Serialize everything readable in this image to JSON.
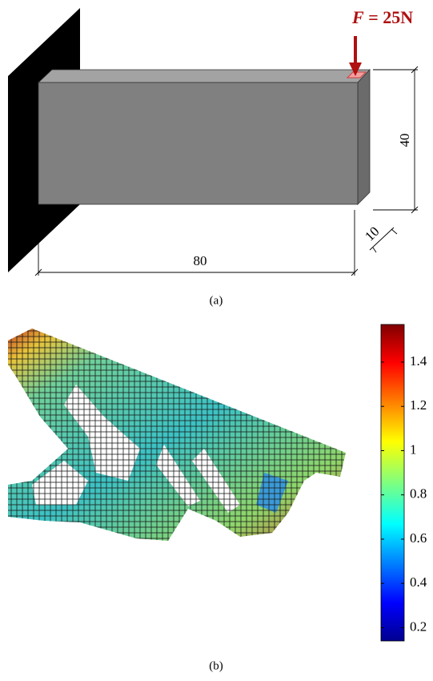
{
  "panel_a": {
    "force": {
      "symbol": "F",
      "text": "= 25N"
    },
    "height": 40,
    "depth": 10,
    "length": 80,
    "caption": "(a)"
  },
  "panel_b": {
    "colorbar": {
      "lim": [
        0.14,
        1.57
      ],
      "ticks": [
        0.2,
        0.4,
        0.6,
        0.8,
        1,
        1.2,
        1.4
      ]
    },
    "caption": "(b)"
  }
}
